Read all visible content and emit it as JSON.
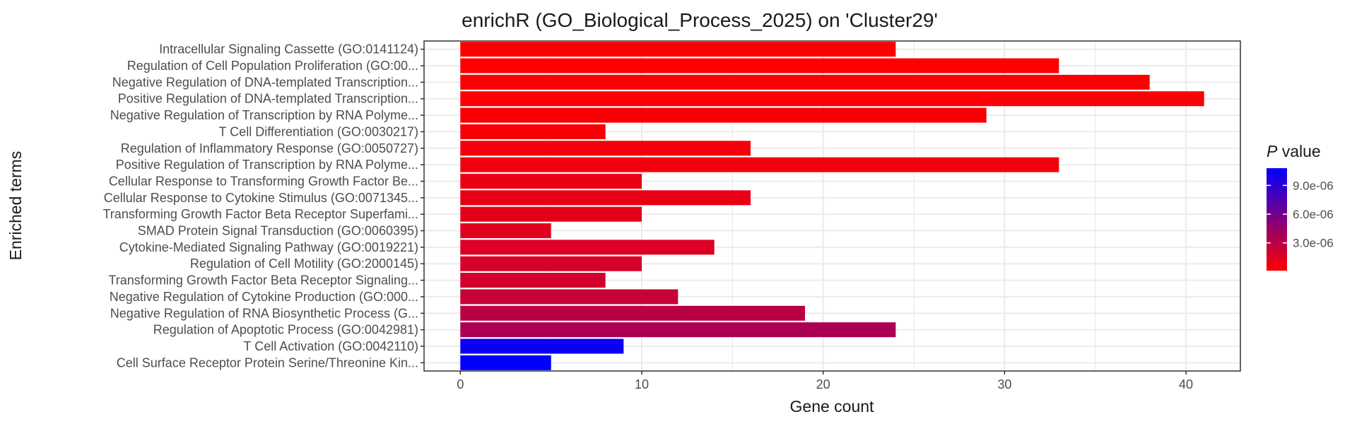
{
  "chart_data": {
    "type": "bar",
    "orientation": "horizontal",
    "title": "enrichR (GO_Biological_Process_2025) on 'Cluster29'",
    "xlabel": "Gene count",
    "ylabel": "Enriched terms",
    "xlim": [
      -2,
      43
    ],
    "x_ticks": [
      0,
      10,
      20,
      30,
      40
    ],
    "grid": true,
    "legend_placement": "right",
    "legend": {
      "title_italic": "P",
      "title_rest": " value",
      "ticks": [
        {
          "label": "9.0e-06",
          "value": 9e-06
        },
        {
          "label": "6.0e-06",
          "value": 6e-06
        },
        {
          "label": "3.0e-06",
          "value": 3e-06
        }
      ],
      "range": [
        1e-07,
        1.08e-05
      ],
      "color_low": "#ff0000",
      "color_high": "#0000ff"
    },
    "categories": [
      "Intracellular Signaling Cassette (GO:0141124)",
      "Regulation of Cell Population Proliferation (GO:00...",
      "Negative Regulation of DNA-templated Transcription...",
      "Positive Regulation of DNA-templated Transcription...",
      "Negative Regulation of Transcription by RNA Polyme...",
      "T Cell Differentiation (GO:0030217)",
      "Regulation of Inflammatory Response (GO:0050727)",
      "Positive Regulation of Transcription by RNA Polyme...",
      "Cellular Response to Transforming Growth Factor Be...",
      "Cellular Response to Cytokine Stimulus (GO:0071345...",
      "Transforming Growth Factor Beta Receptor Superfami...",
      "SMAD Protein Signal Transduction (GO:0060395)",
      "Cytokine-Mediated Signaling Pathway (GO:0019221)",
      "Regulation of Cell Motility (GO:2000145)",
      "Transforming Growth Factor Beta Receptor Signaling...",
      "Negative Regulation of Cytokine Production (GO:000...",
      "Negative Regulation of RNA Biosynthetic Process (G...",
      "Regulation of Apoptotic Process (GO:0042981)",
      "T Cell Activation (GO:0042110)",
      "Cell Surface Receptor Protein Serine/Threonine Kin..."
    ],
    "values": [
      24,
      33,
      38,
      41,
      29,
      8,
      16,
      33,
      10,
      16,
      10,
      5,
      14,
      10,
      8,
      12,
      19,
      24,
      9,
      5
    ],
    "p_values": [
      1e-07,
      1.5e-07,
      2e-07,
      2.5e-07,
      3e-07,
      3.5e-07,
      5e-07,
      7e-07,
      9e-07,
      1e-06,
      1.2e-06,
      1.4e-06,
      1.6e-06,
      1.8e-06,
      2e-06,
      2.4e-06,
      3e-06,
      3.6e-06,
      1.04e-05,
      1.08e-05
    ]
  }
}
